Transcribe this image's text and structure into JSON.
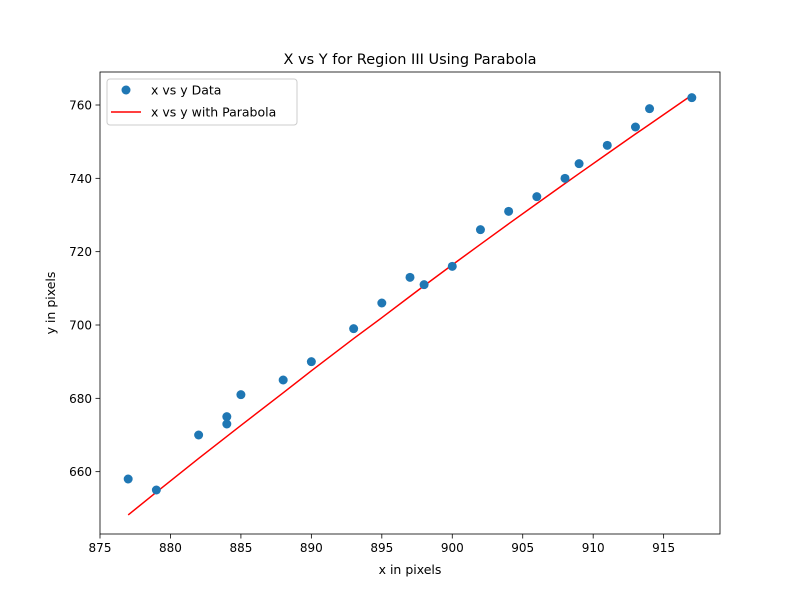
{
  "chart_data": {
    "type": "scatter",
    "title": "X vs Y for Region III Using Parabola",
    "xlabel": "x in pixels",
    "ylabel": "y in pixels",
    "xlim": [
      875,
      919
    ],
    "ylim": [
      643,
      769
    ],
    "xticks": [
      875,
      880,
      885,
      890,
      895,
      900,
      905,
      910,
      915
    ],
    "yticks": [
      660,
      680,
      700,
      720,
      740,
      760
    ],
    "grid": false,
    "legend_position": "top-left",
    "series": [
      {
        "name": "x vs y Data",
        "kind": "scatter",
        "color": "#1f77b4",
        "points": [
          [
            877,
            658
          ],
          [
            879,
            655
          ],
          [
            882,
            670
          ],
          [
            884,
            673
          ],
          [
            884,
            675
          ],
          [
            885,
            681
          ],
          [
            888,
            685
          ],
          [
            890,
            690
          ],
          [
            893,
            699
          ],
          [
            895,
            706
          ],
          [
            897,
            713
          ],
          [
            898,
            711
          ],
          [
            900,
            716
          ],
          [
            902,
            726
          ],
          [
            904,
            731
          ],
          [
            906,
            735
          ],
          [
            908,
            740
          ],
          [
            909,
            744
          ],
          [
            911,
            749
          ],
          [
            913,
            754
          ],
          [
            914,
            759
          ],
          [
            917,
            762
          ]
        ]
      },
      {
        "name": "x vs y with Parabola",
        "kind": "line",
        "color": "#ff0000",
        "points": [
          [
            877,
            648.2
          ],
          [
            879,
            654.4
          ],
          [
            882,
            663.6
          ],
          [
            884,
            669.6
          ],
          [
            885,
            672.6
          ],
          [
            888,
            681.5
          ],
          [
            890,
            687.5
          ],
          [
            893,
            696.3
          ],
          [
            895,
            702.0
          ],
          [
            897,
            707.8
          ],
          [
            898,
            710.7
          ],
          [
            900,
            716.4
          ],
          [
            902,
            722.0
          ],
          [
            904,
            727.6
          ],
          [
            906,
            733.1
          ],
          [
            908,
            738.6
          ],
          [
            909,
            741.3
          ],
          [
            911,
            746.7
          ],
          [
            913,
            752.1
          ],
          [
            914,
            754.7
          ],
          [
            917,
            762.7
          ]
        ]
      }
    ]
  }
}
